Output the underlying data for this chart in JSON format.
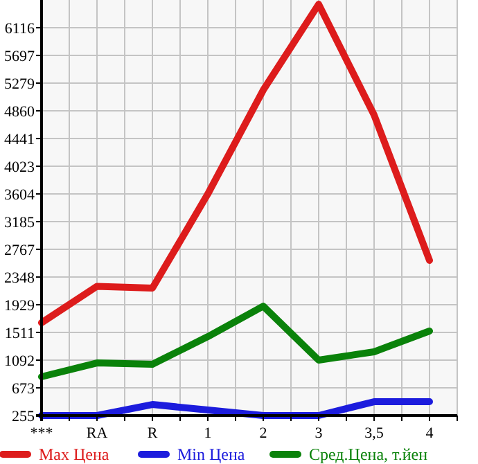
{
  "chart_data": {
    "type": "line",
    "categories": [
      "***",
      "RA",
      "R",
      "1",
      "2",
      "3",
      "3,5",
      "4"
    ],
    "series": [
      {
        "name": "Max Цена",
        "color": "#dd1c1c",
        "values": [
          1657,
          2208,
          2180,
          3604,
          5174,
          6471,
          4797,
          2599
        ]
      },
      {
        "name": "Min Цена",
        "color": "#1c1cdd",
        "values": [
          255,
          255,
          422,
          339,
          255,
          255,
          464,
          464
        ]
      },
      {
        "name": "Сред.Цена, т.йен",
        "color": "#0a820a",
        "values": [
          841,
          1050,
          1030,
          1448,
          1908,
          1092,
          1218,
          1532
        ]
      }
    ],
    "ylim": [
      255,
      6535
    ],
    "yticks": [
      255,
      673,
      1092,
      1511,
      1929,
      2348,
      2767,
      3185,
      3604,
      4023,
      4441,
      4860,
      5279,
      5697,
      6116
    ],
    "grid": true,
    "legend": "bottom",
    "marker": "none",
    "line_style": "solid"
  }
}
